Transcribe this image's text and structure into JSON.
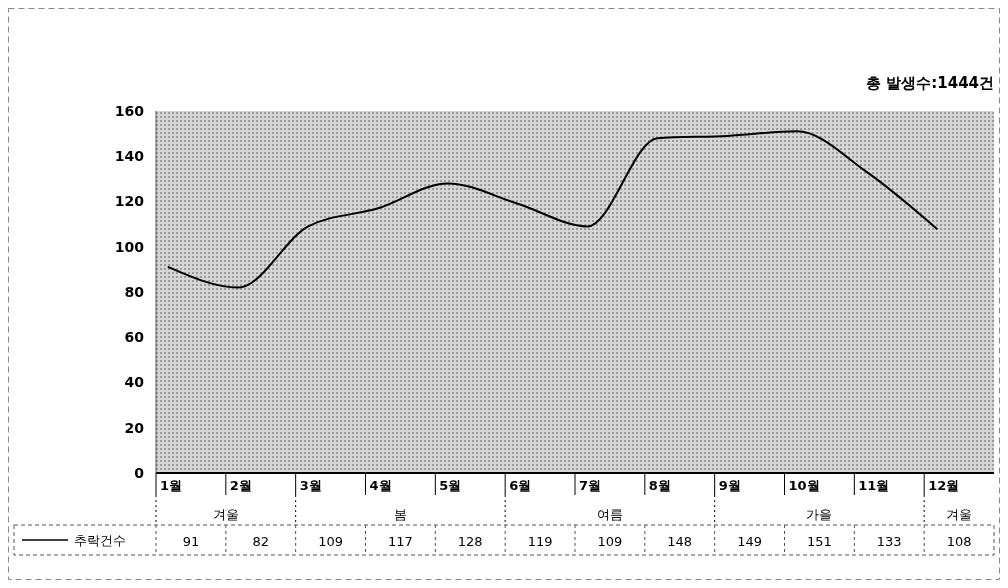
{
  "chart_data": {
    "type": "line",
    "title": "총 발생수:1444건",
    "categories": [
      "1월",
      "2월",
      "3월",
      "4월",
      "5월",
      "6월",
      "7월",
      "8월",
      "9월",
      "10월",
      "11월",
      "12월"
    ],
    "series": [
      {
        "name": "추락건수",
        "color": "#000000",
        "values": [
          91,
          82,
          109,
          117,
          128,
          119,
          109,
          148,
          149,
          151,
          133,
          108
        ]
      }
    ],
    "ylim": [
      0,
      160
    ],
    "yticks": [
      0,
      20,
      40,
      60,
      80,
      100,
      120,
      140,
      160
    ],
    "data_labels": true,
    "legend": "bottom left",
    "grid": false,
    "marker": "none",
    "line_style": "solid",
    "annotations": [
      "겨울",
      "봄",
      "여름",
      "가을",
      "겨울"
    ]
  }
}
